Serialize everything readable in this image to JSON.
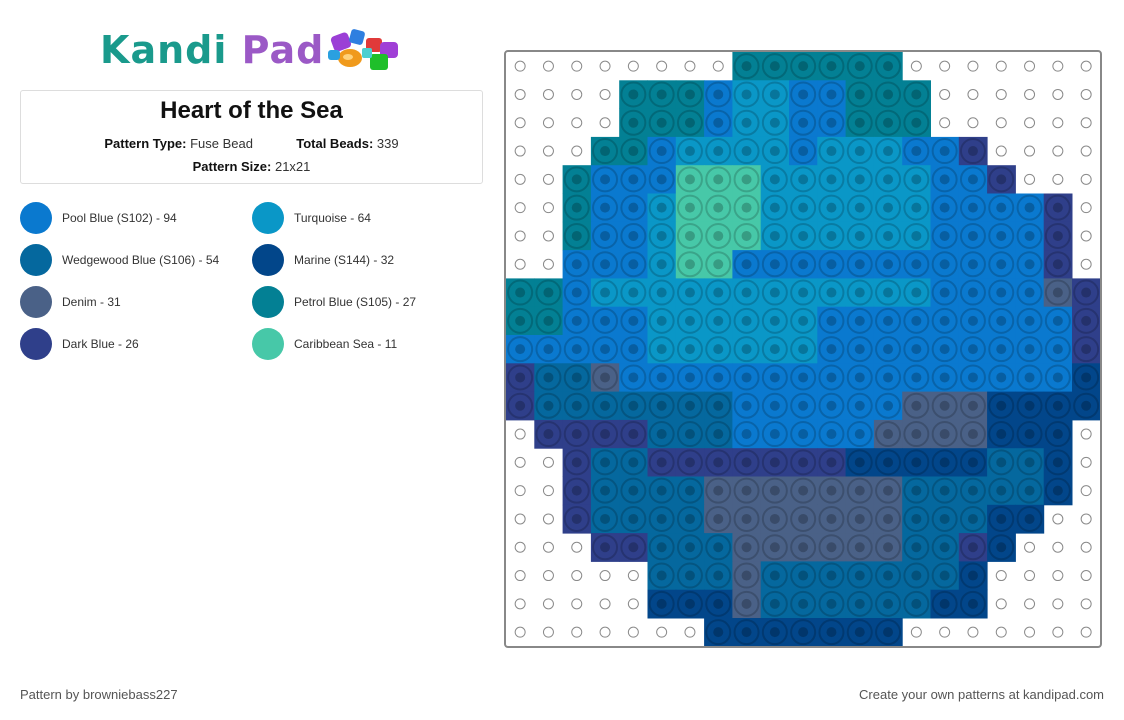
{
  "logo": {
    "part1": "Kandi",
    "part2": "Pad"
  },
  "pattern": {
    "title": "Heart of the Sea",
    "type_label": "Pattern Type:",
    "type_value": "Fuse Bead",
    "beads_label": "Total Beads:",
    "beads_value": "339",
    "size_label": "Pattern Size:",
    "size_value": "21x21"
  },
  "legend": [
    {
      "code": "PB",
      "label": "Pool Blue (S102) - 94",
      "color": "#0a79cf"
    },
    {
      "code": "TQ",
      "label": "Turquoise - 64",
      "color": "#0a97c7"
    },
    {
      "code": "WB",
      "label": "Wedgewood Blue (S106) - 54",
      "color": "#05689e"
    },
    {
      "code": "MA",
      "label": "Marine (S144) - 32",
      "color": "#02468a"
    },
    {
      "code": "DE",
      "label": "Denim - 31",
      "color": "#4a6187"
    },
    {
      "code": "PE",
      "label": "Petrol Blue (S105) - 27",
      "color": "#038094"
    },
    {
      "code": "DB",
      "label": "Dark Blue - 26",
      "color": "#2f3f8a"
    },
    {
      "code": "CS",
      "label": "Caribbean Sea - 11",
      "color": "#47c8a8"
    }
  ],
  "grid": {
    "rows": [
      "........PPPPPP.......",
      "....PPPBTTBBPPP......",
      "....PPPBTTBBPPP......",
      "...PPBTTTTBTTTBBD....",
      "..PBBBCCCTTTTTTBBD...",
      "..PBBTCCCTTTTTTBBBBD.",
      "..PBBTCCCTTTTTTBBBBD.",
      "..BBBTCCBBBBBBBBBBBD.",
      "PPBTTTTTTTTTTTTBBBBED",
      "PPBBBTTTTTTBBBBBBBBBD",
      "BBBBBTTTTTTBBBBBBBBBD",
      "DWWEBBBBBBBBBBBBBBBBM",
      "DWWWWWWWBBBBBBEEEMMMM",
      ".DDDDWWWBBBBBEEEEMMM.",
      "..DWWDDDDDDDMMMMMWWM.",
      "..DWWWWEEEEEEEWWWWWM.",
      "..DWWWWEEEEEEEWWWMM..",
      "...DDWWWEEEEEEWWDM...",
      ".....WWWEWWWWWWWM....",
      ".....MMMEWWWWWWMM....",
      ".......MMMMMMM......."
    ]
  },
  "footer": {
    "credit": "Pattern by browniebass227",
    "promo": "Create your own patterns at kandipad.com"
  }
}
